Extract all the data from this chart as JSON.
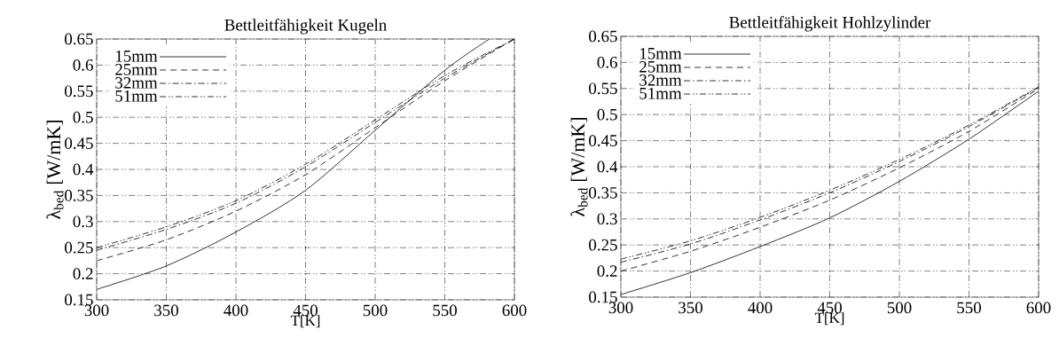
{
  "chart_data": [
    {
      "type": "line",
      "title": "Bettleitfähigkeit Kugeln",
      "xlabel": "T[K]",
      "ylabel": "λ$_{bed}$ [W/mK]",
      "x": [
        300,
        350,
        400,
        450,
        500,
        550,
        600
      ],
      "xlim": [
        300,
        600
      ],
      "ylim": [
        0.15,
        0.65
      ],
      "xticks": [
        300,
        350,
        400,
        450,
        500,
        550,
        600
      ],
      "yticks": [
        0.15,
        0.2,
        0.25,
        0.3,
        0.35,
        0.4,
        0.45,
        0.5,
        0.55,
        0.6,
        0.65
      ],
      "grid": true,
      "legend": "top left",
      "series": [
        {
          "name": "15mm",
          "color": "#000000",
          "line_style": "solid",
          "x": [
            300,
            350,
            400,
            450,
            500,
            550,
            582
          ],
          "values": [
            0.17,
            0.215,
            0.28,
            0.36,
            0.475,
            0.59,
            0.65
          ]
        },
        {
          "name": "25mm",
          "color": "#000000",
          "line_style": "dashed",
          "values": [
            0.225,
            0.265,
            0.32,
            0.39,
            0.48,
            0.57,
            0.65
          ]
        },
        {
          "name": "32mm",
          "color": "#000000",
          "line_style": "dashdot",
          "values": [
            0.245,
            0.285,
            0.335,
            0.405,
            0.49,
            0.575,
            0.65
          ]
        },
        {
          "name": "51mm",
          "color": "#000000",
          "line_style": "dashdotdot",
          "values": [
            0.25,
            0.29,
            0.34,
            0.41,
            0.495,
            0.58,
            0.65
          ]
        }
      ]
    },
    {
      "type": "line",
      "title": "Bettleitfähigkeit Hohlzylinder",
      "xlabel": "T[K]",
      "ylabel": "λ$_{bed}$ [W/mK]",
      "x": [
        300,
        350,
        400,
        450,
        500,
        550,
        600
      ],
      "xlim": [
        300,
        600
      ],
      "ylim": [
        0.15,
        0.65
      ],
      "xticks": [
        300,
        350,
        400,
        450,
        500,
        550,
        600
      ],
      "yticks": [
        0.15,
        0.2,
        0.25,
        0.3,
        0.35,
        0.4,
        0.45,
        0.5,
        0.55,
        0.6,
        0.65
      ],
      "grid": true,
      "legend": "top left",
      "series": [
        {
          "name": "15mm",
          "color": "#000000",
          "line_style": "solid",
          "values": [
            0.155,
            0.197,
            0.247,
            0.302,
            0.372,
            0.453,
            0.545
          ]
        },
        {
          "name": "25mm",
          "color": "#000000",
          "line_style": "dashed",
          "values": [
            0.2,
            0.238,
            0.284,
            0.336,
            0.398,
            0.468,
            0.55
          ]
        },
        {
          "name": "32mm",
          "color": "#000000",
          "line_style": "dashdot",
          "values": [
            0.217,
            0.252,
            0.298,
            0.35,
            0.41,
            0.477,
            0.552
          ]
        },
        {
          "name": "51mm",
          "color": "#000000",
          "line_style": "dashdotdot",
          "values": [
            0.223,
            0.258,
            0.303,
            0.355,
            0.414,
            0.48,
            0.553
          ]
        }
      ]
    }
  ]
}
